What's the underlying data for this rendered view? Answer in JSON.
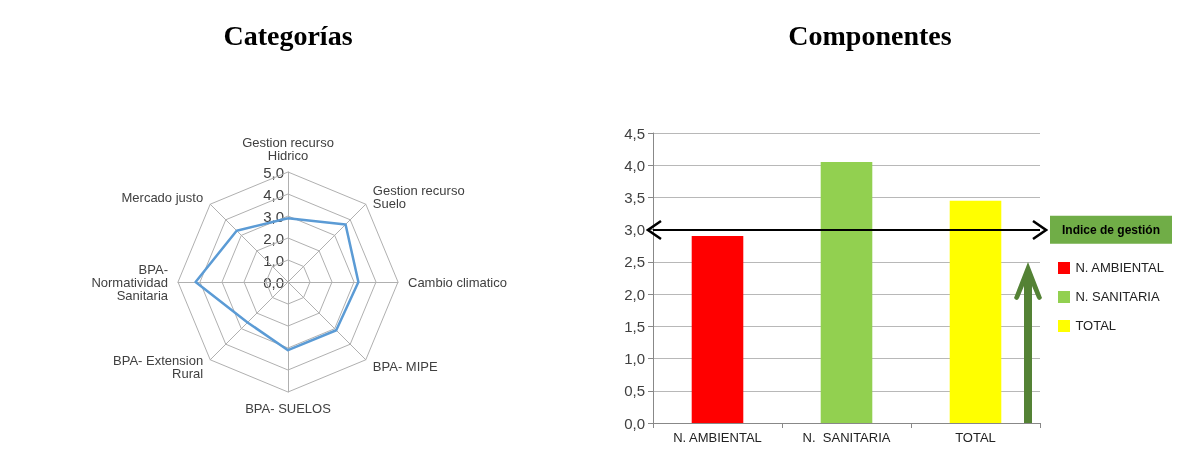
{
  "chart_data": [
    {
      "type": "radar",
      "title": "Categorías",
      "categories": [
        "Gestion recurso Hidrico",
        "Gestion recurso Suelo",
        "Cambio climatico",
        "BPA- MIPE",
        "BPA- SUELOS",
        "BPA- Extension Rural",
        "BPA- Normatividad Sanitaria",
        "Mercado justo"
      ],
      "series": [
        {
          "color": "#5b9bd5",
          "values": [
            2.9,
            3.7,
            3.2,
            3.1,
            3.1,
            2.6,
            4.2,
            3.3
          ]
        }
      ],
      "ylim": [
        0,
        5
      ],
      "yticks": [
        {
          "value": 0,
          "label": "0,0"
        },
        {
          "value": 1,
          "label": "1,0"
        },
        {
          "value": 2,
          "label": "2,0"
        },
        {
          "value": 3,
          "label": "3,0"
        },
        {
          "value": 4,
          "label": "4,0"
        },
        {
          "value": 5,
          "label": "5,0"
        }
      ]
    },
    {
      "type": "bar",
      "title": "Componentes",
      "categories": [
        "N. AMBIENTAL",
        "N.  SANITARIA",
        "TOTAL"
      ],
      "values": [
        2.9,
        4.05,
        3.45
      ],
      "colors": [
        "#ff0000",
        "#92d050",
        "#ffff00"
      ],
      "ylim": [
        0,
        4.5
      ],
      "yticks": [
        {
          "value": 0,
          "label": "0,0"
        },
        {
          "value": 0.5,
          "label": "0,5"
        },
        {
          "value": 1,
          "label": "1,0"
        },
        {
          "value": 1.5,
          "label": "1,5"
        },
        {
          "value": 2,
          "label": "2,0"
        },
        {
          "value": 2.5,
          "label": "2,5"
        },
        {
          "value": 3,
          "label": "3,0"
        },
        {
          "value": 3.5,
          "label": "3,5"
        },
        {
          "value": 4,
          "label": "4,0"
        },
        {
          "value": 4.5,
          "label": "4,5"
        }
      ],
      "grid": "y",
      "legend": "right",
      "ref_lines": [
        {
          "axis": "y",
          "value": 3,
          "label": "Indice de gestión",
          "color": "#000000"
        }
      ]
    }
  ]
}
